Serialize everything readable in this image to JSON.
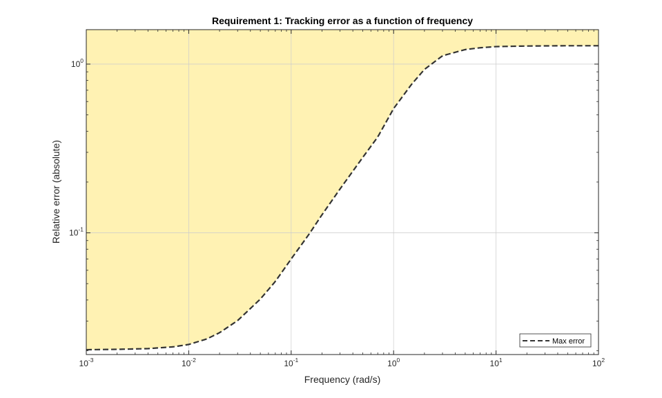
{
  "chart_data": {
    "type": "area",
    "title": "Requirement 1: Tracking error as a function of frequency",
    "xlabel": "Frequency (rad/s)",
    "ylabel": "Relative error (absolute)",
    "xscale": "log",
    "yscale": "log",
    "xlim": [
      0.001,
      100
    ],
    "ylim": [
      0.019,
      1.6
    ],
    "grid": true,
    "x_ticks": [
      {
        "base": "10",
        "exp": "-3",
        "value": 0.001
      },
      {
        "base": "10",
        "exp": "-2",
        "value": 0.01
      },
      {
        "base": "10",
        "exp": "-1",
        "value": 0.1
      },
      {
        "base": "10",
        "exp": "0",
        "value": 1
      },
      {
        "base": "10",
        "exp": "1",
        "value": 10
      },
      {
        "base": "10",
        "exp": "2",
        "value": 100
      }
    ],
    "y_ticks": [
      {
        "base": "10",
        "exp": "-1",
        "value": 0.1
      },
      {
        "base": "10",
        "exp": "0",
        "value": 1
      }
    ],
    "series": [
      {
        "name": "Max error",
        "style": "dashed",
        "color": "#333333",
        "fill_region": "above",
        "fill_color": "#FFF2B3",
        "x": [
          0.001,
          0.002,
          0.004,
          0.007,
          0.01,
          0.015,
          0.02,
          0.03,
          0.05,
          0.07,
          0.1,
          0.15,
          0.2,
          0.3,
          0.5,
          0.7,
          1,
          1.5,
          2,
          3,
          5,
          7,
          10,
          20,
          50,
          100
        ],
        "y": [
          0.0203,
          0.0204,
          0.0206,
          0.0211,
          0.0218,
          0.0235,
          0.0256,
          0.0302,
          0.0405,
          0.0515,
          0.07,
          0.0985,
          0.128,
          0.182,
          0.28,
          0.37,
          0.545,
          0.76,
          0.93,
          1.12,
          1.22,
          1.25,
          1.27,
          1.28,
          1.285,
          1.285
        ]
      }
    ],
    "legend": {
      "position": "bottom-right",
      "entries": [
        "Max error"
      ]
    }
  }
}
